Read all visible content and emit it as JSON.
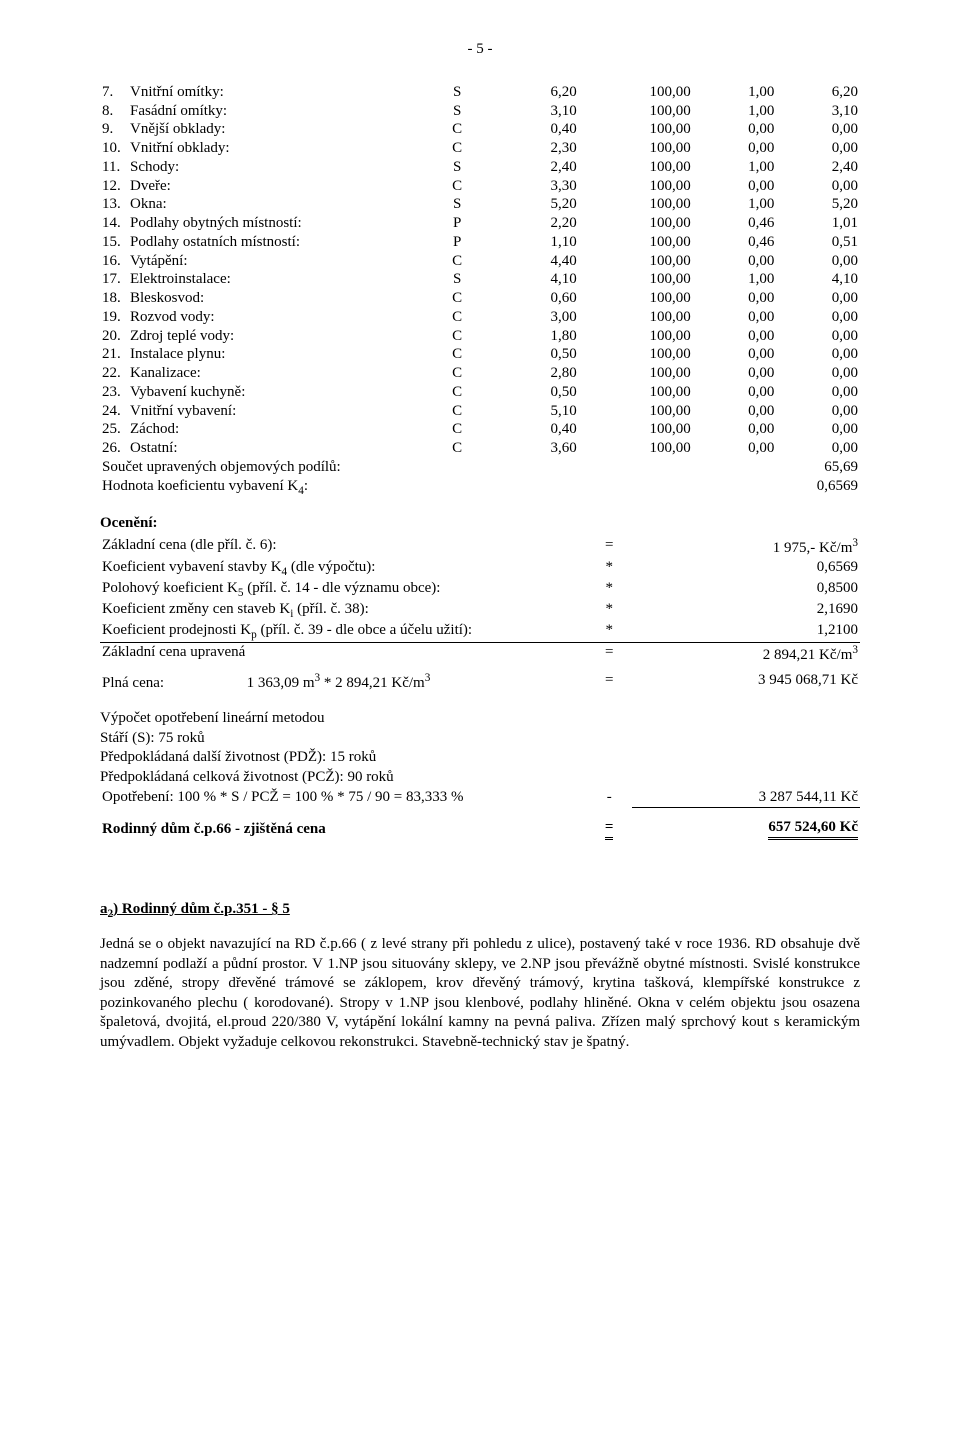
{
  "page_number": "- 5 -",
  "items": [
    {
      "no": "7.",
      "name": "Vnitřní omítky:",
      "s": "S",
      "c1": "6,20",
      "c2": "100,00",
      "c3": "1,00",
      "c4": "6,20"
    },
    {
      "no": "8.",
      "name": "Fasádní omítky:",
      "s": "S",
      "c1": "3,10",
      "c2": "100,00",
      "c3": "1,00",
      "c4": "3,10"
    },
    {
      "no": "9.",
      "name": "Vnější obklady:",
      "s": "C",
      "c1": "0,40",
      "c2": "100,00",
      "c3": "0,00",
      "c4": "0,00"
    },
    {
      "no": "10.",
      "name": "Vnitřní obklady:",
      "s": "C",
      "c1": "2,30",
      "c2": "100,00",
      "c3": "0,00",
      "c4": "0,00"
    },
    {
      "no": "11.",
      "name": "Schody:",
      "s": "S",
      "c1": "2,40",
      "c2": "100,00",
      "c3": "1,00",
      "c4": "2,40"
    },
    {
      "no": "12.",
      "name": "Dveře:",
      "s": "C",
      "c1": "3,30",
      "c2": "100,00",
      "c3": "0,00",
      "c4": "0,00"
    },
    {
      "no": "13.",
      "name": "Okna:",
      "s": "S",
      "c1": "5,20",
      "c2": "100,00",
      "c3": "1,00",
      "c4": "5,20"
    },
    {
      "no": "14.",
      "name": "Podlahy obytných místností:",
      "s": "P",
      "c1": "2,20",
      "c2": "100,00",
      "c3": "0,46",
      "c4": "1,01"
    },
    {
      "no": "15.",
      "name": "Podlahy ostatních místností:",
      "s": "P",
      "c1": "1,10",
      "c2": "100,00",
      "c3": "0,46",
      "c4": "0,51"
    },
    {
      "no": "16.",
      "name": "Vytápění:",
      "s": "C",
      "c1": "4,40",
      "c2": "100,00",
      "c3": "0,00",
      "c4": "0,00"
    },
    {
      "no": "17.",
      "name": "Elektroinstalace:",
      "s": "S",
      "c1": "4,10",
      "c2": "100,00",
      "c3": "1,00",
      "c4": "4,10"
    },
    {
      "no": "18.",
      "name": "Bleskosvod:",
      "s": "C",
      "c1": "0,60",
      "c2": "100,00",
      "c3": "0,00",
      "c4": "0,00"
    },
    {
      "no": "19.",
      "name": "Rozvod vody:",
      "s": "C",
      "c1": "3,00",
      "c2": "100,00",
      "c3": "0,00",
      "c4": "0,00"
    },
    {
      "no": "20.",
      "name": "Zdroj teplé vody:",
      "s": "C",
      "c1": "1,80",
      "c2": "100,00",
      "c3": "0,00",
      "c4": "0,00"
    },
    {
      "no": "21.",
      "name": "Instalace plynu:",
      "s": "C",
      "c1": "0,50",
      "c2": "100,00",
      "c3": "0,00",
      "c4": "0,00"
    },
    {
      "no": "22.",
      "name": "Kanalizace:",
      "s": "C",
      "c1": "2,80",
      "c2": "100,00",
      "c3": "0,00",
      "c4": "0,00"
    },
    {
      "no": "23.",
      "name": "Vybavení kuchyně:",
      "s": "C",
      "c1": "0,50",
      "c2": "100,00",
      "c3": "0,00",
      "c4": "0,00"
    },
    {
      "no": "24.",
      "name": "Vnitřní vybavení:",
      "s": "C",
      "c1": "5,10",
      "c2": "100,00",
      "c3": "0,00",
      "c4": "0,00"
    },
    {
      "no": "25.",
      "name": "Záchod:",
      "s": "C",
      "c1": "0,40",
      "c2": "100,00",
      "c3": "0,00",
      "c4": "0,00"
    },
    {
      "no": "26.",
      "name": "Ostatní:",
      "s": "C",
      "c1": "3,60",
      "c2": "100,00",
      "c3": "0,00",
      "c4": "0,00"
    }
  ],
  "sum1_label": "Součet upravených objemových podílů:",
  "sum1_value": "65,69",
  "sum2_label_pre": "Hodnota koeficientu vybavení K",
  "sum2_label_sub": "4",
  "sum2_label_post": ":",
  "sum2_value": "0,6569",
  "valuation_head": "Ocenění:",
  "coeff_rows": [
    {
      "label": "Základní cena (dle příl. č. 6):",
      "op": "=",
      "val": "1 975,- Kč/m",
      "sup": "3"
    },
    {
      "label": "Koeficient vybavení stavby K",
      "sub": "4",
      "label2": " (dle výpočtu):",
      "op": "*",
      "val": "0,6569"
    },
    {
      "label": "Polohový koeficient K",
      "sub": "5",
      "label2": " (příl. č. 14 - dle významu obce):",
      "op": "*",
      "val": "0,8500"
    },
    {
      "label": "Koeficient změny cen staveb K",
      "sub": "i",
      "label2": " (příl. č. 38):",
      "op": "*",
      "val": "2,1690"
    },
    {
      "label": "Koeficient prodejnosti K",
      "sub": "p",
      "label2": " (příl. č. 39 - dle obce a účelu užití):",
      "op": "*",
      "val": "1,2100",
      "underline_after": true
    }
  ],
  "zcu_label": "Základní cena upravená",
  "zcu_op": "=",
  "zcu_val": "2 894,21 Kč/m",
  "zcu_sup": "3",
  "plna_label": "Plná cena:",
  "plna_mid": "1 363,09 m",
  "plna_mid_sup": "3",
  "plna_mid2": " * 2 894,21 Kč/m",
  "plna_mid2_sup": "3",
  "plna_op": "=",
  "plna_val": "3 945 068,71 Kč",
  "wear_head": "Výpočet opotřebení lineární metodou",
  "wear_l1": "Stáří (S): 75 roků",
  "wear_l2": "Předpokládaná další životnost (PDŽ): 15 roků",
  "wear_l3": "Předpokládaná celková životnost (PCŽ): 90 roků",
  "wear_calc": "Opotřebení: 100 % * S / PCŽ = 100 % * 75 / 90 = 83,333 %",
  "wear_op": "-",
  "wear_val": "3 287 544,11 Kč",
  "final_label": "Rodinný dům č.p.66 - zjištěná cena",
  "final_op": "=",
  "final_val": "657 524,60 Kč",
  "sec2_prefix": "a",
  "sec2_sub": "2",
  "sec2_rest": ") Rodinný dům č.p.351 - § 5",
  "para": "Jedná se o objekt navazující na RD č.p.66 ( z levé strany při pohledu z ulice), postavený také v roce 1936. RD obsahuje dvě nadzemní podlaží a půdní prostor. V 1.NP jsou situovány sklepy, ve 2.NP jsou převážně obytné místnosti. Svislé konstrukce jsou zděné, stropy dřevěné trámové se záklopem, krov dřevěný trámový, krytina tašková, klempířské konstrukce z pozinkovaného plechu ( korodované). Stropy v 1.NP jsou klenbové, podlahy hliněné. Okna v celém objektu jsou osazena špaletová, dvojitá, el.proud 220/380 V, vytápění lokální kamny na pevná paliva. Zřízen malý sprchový kout s keramickým umývadlem. Objekt vyžaduje celkovou rekonstrukci. Stavebně-technický stav je špatný."
}
